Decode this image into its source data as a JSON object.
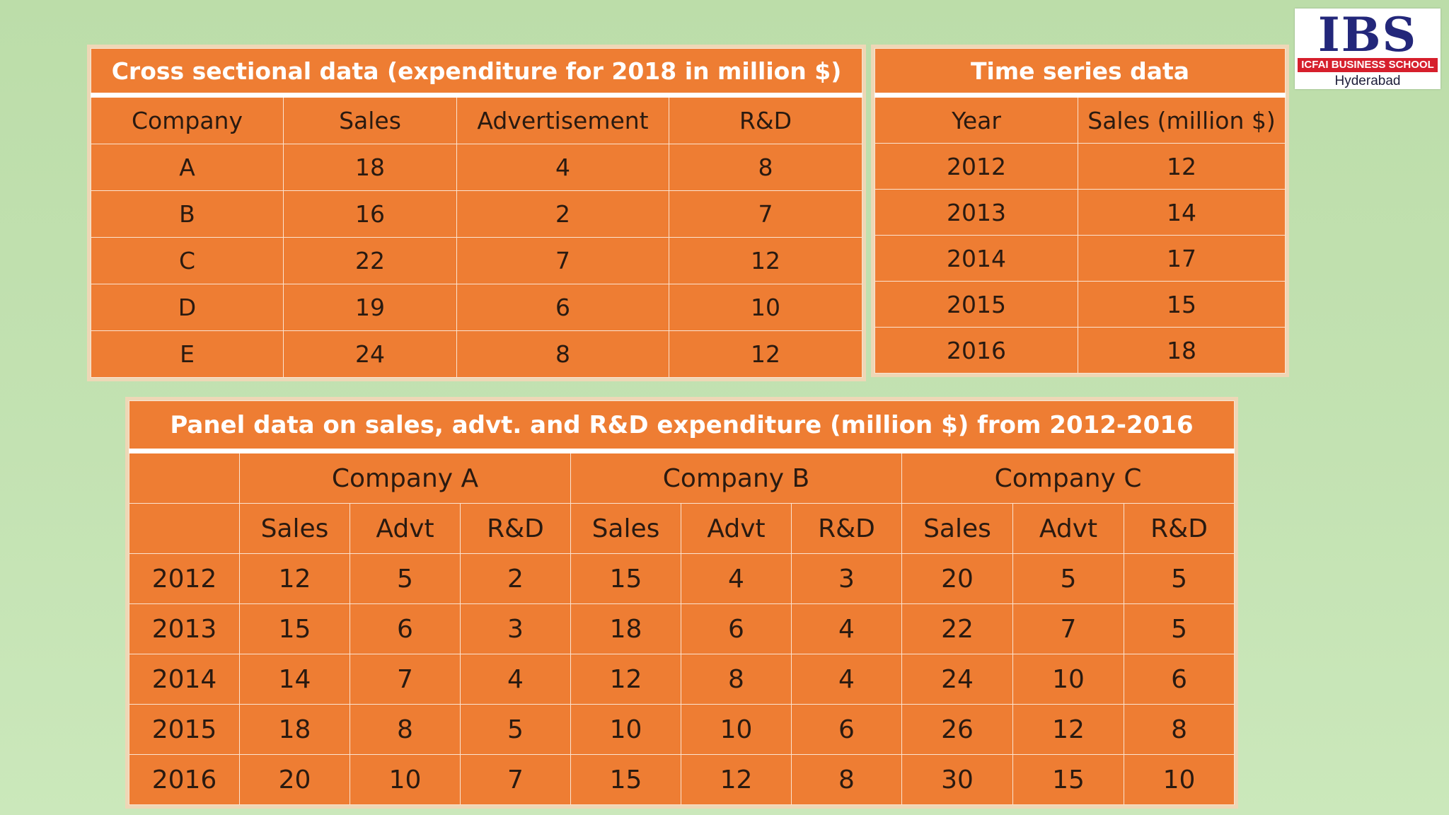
{
  "cross_sectional": {
    "title": "Cross sectional data (expenditure for 2018 in million $)",
    "headers": [
      "Company",
      "Sales",
      "Advertisement",
      "R&D"
    ],
    "rows": [
      [
        "A",
        "18",
        "4",
        "8"
      ],
      [
        "B",
        "16",
        "2",
        "7"
      ],
      [
        "C",
        "22",
        "7",
        "12"
      ],
      [
        "D",
        "19",
        "6",
        "10"
      ],
      [
        "E",
        "24",
        "8",
        "12"
      ]
    ]
  },
  "time_series": {
    "title": "Time series data",
    "headers": [
      "Year",
      "Sales (million $)"
    ],
    "rows": [
      [
        "2012",
        "12"
      ],
      [
        "2013",
        "14"
      ],
      [
        "2014",
        "17"
      ],
      [
        "2015",
        "15"
      ],
      [
        "2016",
        "18"
      ]
    ]
  },
  "panel": {
    "title": "Panel data on sales, advt. and R&D expenditure (million $) from 2012-2016",
    "companies": [
      "Company A",
      "Company B",
      "Company C"
    ],
    "subheaders": [
      "Sales",
      "Advt",
      "R&D"
    ],
    "rows": [
      [
        "2012",
        "12",
        "5",
        "2",
        "15",
        "4",
        "3",
        "20",
        "5",
        "5"
      ],
      [
        "2013",
        "15",
        "6",
        "3",
        "18",
        "6",
        "4",
        "22",
        "7",
        "5"
      ],
      [
        "2014",
        "14",
        "7",
        "4",
        "12",
        "8",
        "4",
        "24",
        "10",
        "6"
      ],
      [
        "2015",
        "18",
        "8",
        "5",
        "10",
        "10",
        "6",
        "26",
        "12",
        "8"
      ],
      [
        "2016",
        "20",
        "10",
        "7",
        "15",
        "12",
        "8",
        "30",
        "15",
        "10"
      ]
    ]
  },
  "logo": {
    "mark": "IBS",
    "band": "ICFAI BUSINESS SCHOOL",
    "city": "Hyderabad"
  }
}
